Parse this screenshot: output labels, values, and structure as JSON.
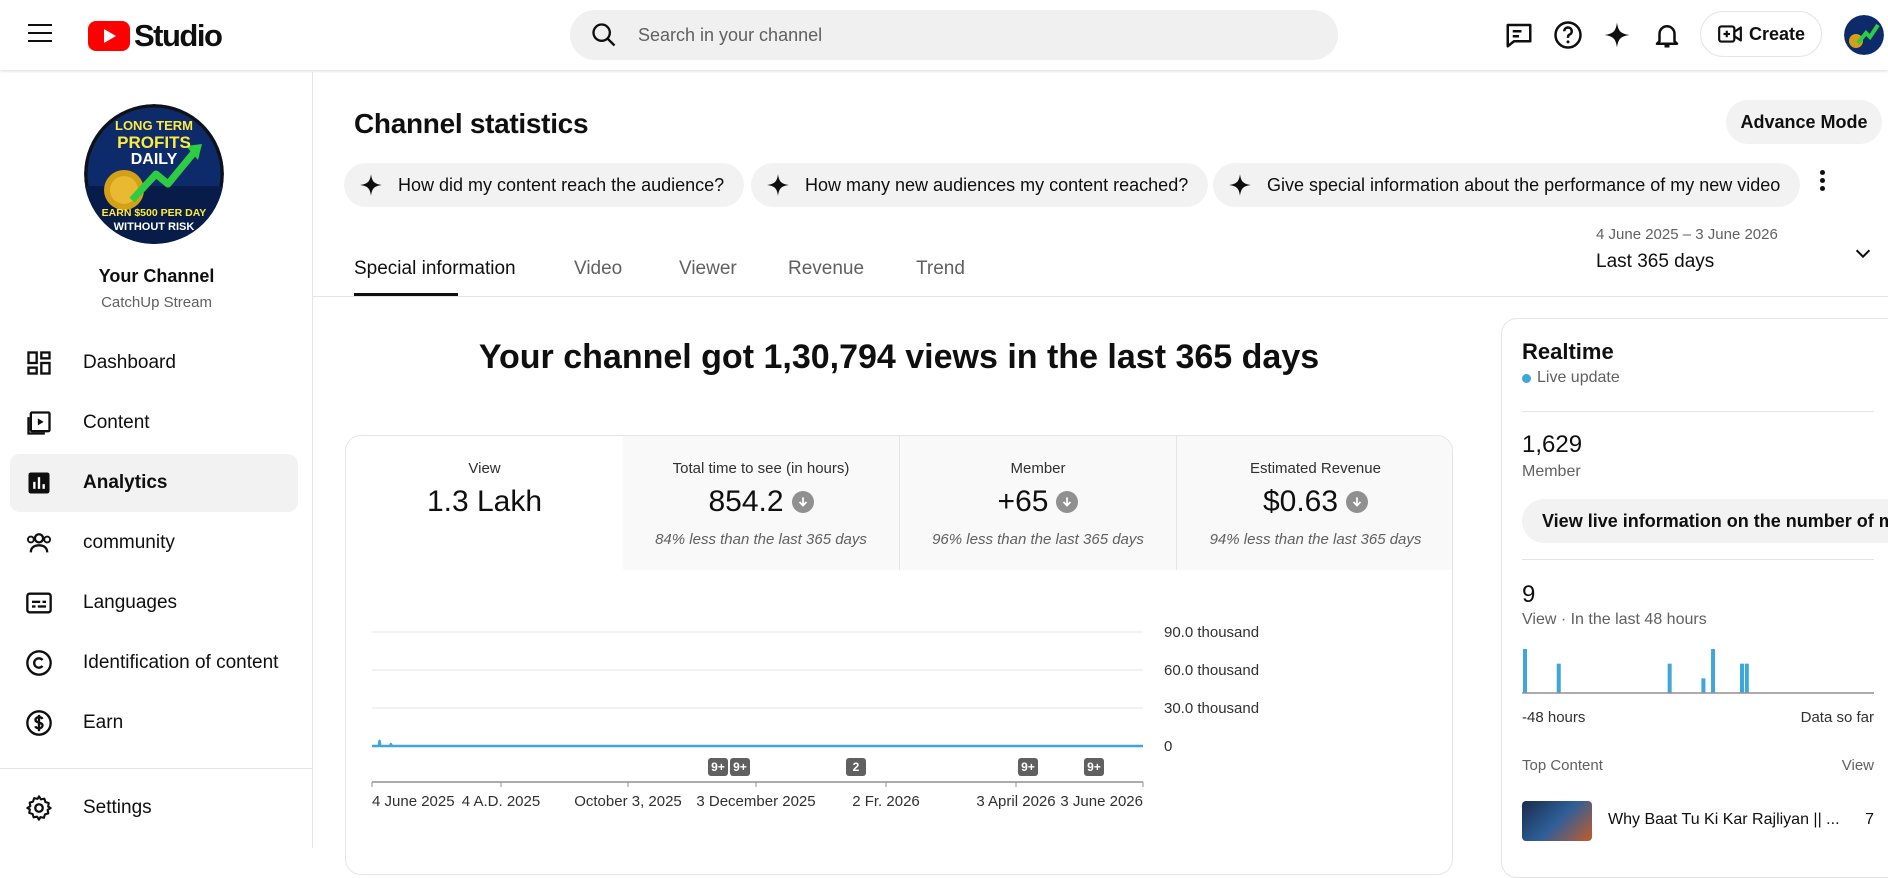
{
  "topbar": {
    "logo_text": "Studio",
    "search_placeholder": "Search in your channel",
    "create_label": "Create"
  },
  "sidebar": {
    "channel_name": "Your Channel",
    "channel_handle": "CatchUp Stream",
    "avatar_text": [
      "LONG TERM",
      "PROFITS",
      "DAILY",
      "EARN $500 PER DAY",
      "WITHOUT RISK"
    ],
    "items": [
      {
        "label": "Dashboard",
        "icon": "dashboard-icon"
      },
      {
        "label": "Content",
        "icon": "content-icon"
      },
      {
        "label": "Analytics",
        "icon": "analytics-icon",
        "active": true
      },
      {
        "label": "community",
        "icon": "community-icon"
      },
      {
        "label": "Languages",
        "icon": "languages-icon"
      },
      {
        "label": "Identification of content",
        "icon": "copyright-icon"
      },
      {
        "label": "Earn",
        "icon": "earn-icon"
      },
      {
        "label": "Settings",
        "icon": "gear-icon"
      }
    ]
  },
  "main": {
    "title": "Channel statistics",
    "advance_mode": "Advance Mode",
    "chips": [
      "How did my content reach the audience?",
      "How many new audiences my content reached?",
      "Give special information about the performance of my new video"
    ],
    "date_range": "4 June 2025 – 3 June 2026",
    "period": "Last 365 days",
    "tabs": [
      "Special information",
      "Video",
      "Viewer",
      "Revenue",
      "Trend"
    ],
    "headline": "Your channel got 1,30,794 views in the last 365 days",
    "metrics": [
      {
        "label": "View",
        "value": "1.3 Lakh",
        "change": ""
      },
      {
        "label": "Total time to see (in hours)",
        "value": "854.2",
        "change": "84% less than the last 365 days"
      },
      {
        "label": "Member",
        "value": "+65",
        "change": "96% less than the last 365 days"
      },
      {
        "label": "Estimated Revenue",
        "value": "$0.63",
        "change": "94% less than the last 365 days"
      }
    ]
  },
  "chart_data": {
    "type": "line",
    "x_ticks": [
      "4 June 2025",
      "4 A.D. 2025",
      "October 3, 2025",
      "3 December 2025",
      "2 Fr. 2026",
      "3 April 2026",
      "3 June 2026"
    ],
    "y_ticks": [
      "0",
      "30.0 thousand",
      "60.0 thousand",
      "90.0 thousand"
    ],
    "ylim": [
      0,
      90000
    ],
    "series": [
      {
        "values": [
          0,
          0,
          0,
          0,
          0,
          0,
          0,
          0,
          0,
          0,
          4000,
          0,
          0,
          0,
          0,
          0,
          0,
          0,
          0,
          0,
          0,
          0,
          0,
          0,
          0,
          1500,
          0,
          0,
          0,
          0,
          0,
          0,
          0,
          0,
          0,
          0,
          0,
          0,
          0,
          0,
          0,
          0,
          0,
          0,
          0,
          0,
          0,
          0,
          0,
          0,
          0,
          0,
          0,
          0,
          0,
          0,
          0,
          0,
          0,
          0,
          0,
          0,
          0,
          0,
          0,
          0,
          0,
          0,
          0,
          0,
          0,
          0,
          0,
          0,
          0,
          0,
          0,
          0,
          0,
          0,
          0,
          0,
          0,
          0,
          0,
          0,
          0,
          0,
          0,
          0,
          0,
          0,
          0,
          0,
          0,
          0,
          0,
          0,
          0,
          0,
          0,
          0,
          0,
          0,
          0,
          0,
          0,
          0,
          0,
          0,
          0,
          0,
          0,
          0,
          0,
          0,
          0,
          0,
          0,
          0,
          0,
          0,
          0,
          0,
          0,
          0,
          0,
          0,
          0,
          0,
          0,
          0,
          0,
          0,
          0,
          0,
          0,
          0,
          0,
          0,
          0,
          0,
          0,
          0,
          0,
          0,
          0,
          0,
          0,
          0,
          0,
          0,
          0,
          0,
          0,
          0,
          0,
          0,
          0,
          0,
          0,
          0,
          0,
          0,
          0,
          0,
          0,
          0,
          0,
          0,
          0,
          0,
          0,
          0,
          0,
          0,
          0,
          0,
          0,
          0,
          0,
          0,
          0,
          0,
          0,
          0,
          0,
          0,
          0,
          0,
          0,
          0,
          0,
          0,
          0,
          0,
          0,
          0,
          0,
          0,
          0,
          0,
          0,
          0,
          0,
          0,
          0,
          0,
          0,
          0,
          0,
          0,
          0,
          0,
          0,
          0,
          0,
          0,
          0,
          0,
          0,
          0,
          0,
          0,
          0,
          0,
          0,
          0,
          0,
          0,
          0,
          0,
          0,
          0,
          0,
          0,
          0,
          0,
          0,
          0,
          0,
          0,
          0,
          0,
          0,
          0,
          0,
          0,
          0,
          0,
          0,
          0,
          0,
          0,
          0,
          0,
          0,
          0,
          0,
          0,
          0,
          0,
          0,
          0,
          0,
          0,
          0,
          0,
          0,
          0,
          0,
          0,
          0,
          0,
          0,
          0,
          0,
          0,
          0,
          0,
          0,
          0,
          0,
          0,
          0,
          0,
          0,
          0,
          0,
          0,
          0,
          0,
          0,
          0,
          0,
          0,
          0,
          0,
          0,
          0,
          0,
          0,
          0,
          0,
          0,
          0,
          0,
          0,
          0,
          0,
          0,
          0,
          0,
          0,
          0,
          0,
          0,
          0,
          0,
          0,
          0,
          0,
          0,
          0,
          0,
          0,
          0,
          0,
          0,
          0,
          0,
          0,
          0,
          0,
          0,
          0,
          0,
          0,
          0,
          0,
          0,
          0,
          0,
          0,
          0,
          0,
          0,
          0,
          0,
          0,
          0,
          0,
          0,
          0,
          0,
          0,
          0,
          0,
          0,
          0,
          0,
          0,
          0,
          0,
          0,
          0,
          0,
          0,
          0,
          0,
          0,
          0,
          0,
          0,
          0,
          0,
          0,
          0,
          0,
          0,
          0,
          0,
          0,
          0,
          0,
          0,
          0,
          0,
          0,
          0,
          0,
          0,
          0,
          0,
          0,
          0,
          0,
          0,
          0,
          0,
          0,
          0,
          0,
          0,
          0,
          0,
          0,
          0,
          0,
          0,
          0,
          0,
          0,
          0,
          0,
          0,
          0,
          0,
          0,
          0,
          0,
          0,
          0,
          0,
          0,
          0,
          0,
          0,
          0,
          0,
          0,
          0,
          0,
          0,
          0,
          0,
          0,
          0,
          0,
          0,
          0,
          0,
          0,
          0,
          0,
          0,
          0,
          0,
          0,
          0,
          0,
          0,
          0,
          0,
          0,
          0,
          0,
          0,
          0,
          0,
          0,
          0,
          0,
          0,
          0,
          0,
          0,
          0,
          0,
          0,
          0,
          0,
          0,
          0,
          0,
          0,
          0,
          0,
          0,
          0,
          0,
          0,
          0,
          0,
          0,
          0,
          0,
          0,
          0,
          0,
          0,
          0,
          0,
          0,
          0,
          0,
          0,
          0,
          0,
          0,
          0,
          0,
          0,
          0,
          0,
          0,
          0,
          0,
          0,
          0,
          0,
          0,
          0,
          0,
          0,
          0,
          0,
          0,
          0,
          0,
          0,
          0,
          0,
          0,
          0,
          0,
          0,
          0,
          0,
          0,
          0,
          0,
          0,
          0,
          0,
          0,
          0,
          0,
          0,
          0,
          0,
          0,
          0,
          0,
          0,
          0,
          0,
          0,
          0,
          0,
          0,
          0,
          0,
          0,
          0,
          0,
          0,
          0,
          0,
          0,
          0,
          0,
          0,
          0,
          0,
          0,
          0,
          0,
          0,
          0,
          0,
          0,
          0,
          0,
          0,
          0,
          0,
          0,
          0,
          0,
          0,
          0,
          0,
          0,
          0,
          0,
          0,
          0,
          0,
          0,
          0,
          0,
          0,
          0,
          0,
          0,
          0,
          0,
          0,
          0,
          0,
          0,
          0,
          0,
          0,
          0,
          0,
          0,
          0,
          0,
          0,
          0,
          0,
          0,
          0,
          0,
          0,
          0,
          0,
          0,
          0,
          0,
          0,
          0,
          0,
          0,
          0,
          0,
          0,
          0,
          0,
          0,
          0,
          0,
          0,
          0,
          0,
          0,
          0,
          0,
          0,
          0,
          0,
          0,
          0,
          0,
          0,
          0,
          0,
          0,
          0,
          0,
          0,
          0,
          0,
          0,
          0,
          0,
          0,
          0,
          0,
          0,
          0,
          0,
          0,
          0,
          0,
          0,
          0,
          0,
          0,
          0,
          0,
          0,
          0,
          0,
          0,
          0,
          0,
          0,
          0,
          0,
          0,
          0,
          0,
          0,
          0,
          0,
          0,
          0,
          0,
          0,
          0,
          0,
          0,
          0,
          0,
          0,
          0,
          0,
          0,
          0,
          0,
          0,
          0,
          0,
          0,
          0,
          0,
          0,
          0,
          0,
          0,
          0,
          0,
          0,
          0,
          0,
          0,
          0,
          0,
          0,
          0,
          0,
          0,
          0,
          0,
          0,
          0,
          0,
          0,
          0,
          0,
          0,
          0,
          0,
          0,
          0,
          0,
          0,
          0,
          0,
          0,
          0,
          0,
          0,
          0,
          0,
          0,
          0,
          0,
          0,
          0,
          0,
          0,
          0,
          0,
          0,
          0,
          0,
          0,
          0,
          0,
          0,
          0,
          0,
          0,
          0,
          0,
          0,
          0,
          0,
          0,
          0,
          0,
          0,
          0,
          0,
          0,
          0,
          0,
          0,
          0,
          0,
          0,
          0,
          0,
          0,
          0,
          0,
          0,
          0,
          0,
          0,
          0,
          0,
          0,
          0,
          0,
          0,
          0,
          0,
          0,
          0,
          0,
          0,
          0,
          0,
          0,
          0,
          0,
          0,
          0,
          0,
          0,
          0,
          0,
          0,
          0,
          0,
          0,
          0,
          0,
          0,
          0,
          0,
          0,
          0,
          0,
          0,
          0,
          0,
          0,
          0,
          0,
          0,
          0,
          0,
          0,
          0,
          0,
          0,
          0,
          0,
          0,
          0,
          0,
          0,
          0,
          0,
          0,
          0,
          0,
          0,
          0,
          0,
          0,
          0,
          0,
          0,
          0,
          0,
          0,
          0,
          0,
          0,
          0,
          0,
          0,
          0,
          0,
          0,
          0,
          0,
          0,
          0,
          0,
          0,
          0,
          0,
          0,
          0,
          0,
          0,
          0,
          0,
          0,
          0,
          0,
          0,
          0,
          0,
          0,
          0,
          0,
          0,
          0,
          0,
          0,
          0,
          0,
          0,
          0,
          0,
          0,
          0,
          0,
          0,
          0,
          0,
          0,
          0,
          0,
          0,
          0,
          0,
          0,
          0,
          0,
          0,
          0,
          0,
          0,
          0,
          0,
          0,
          0,
          0,
          0,
          0,
          0,
          0,
          0,
          0,
          0,
          0,
          0,
          0,
          0,
          0,
          0,
          0,
          0,
          0,
          0,
          0,
          0,
          0,
          0,
          0,
          0,
          0,
          0,
          0,
          0,
          0,
          0,
          0,
          0,
          0,
          0,
          0,
          0,
          0,
          0,
          0,
          0,
          0,
          0,
          0,
          0,
          0,
          0,
          0,
          0,
          0,
          0,
          0,
          0,
          0,
          0,
          0,
          0,
          0,
          0,
          0,
          0,
          0,
          0,
          0,
          0,
          0,
          0,
          0,
          0,
          0,
          0,
          0,
          0,
          0,
          0,
          0,
          0,
          0,
          0,
          0,
          0,
          0,
          0,
          0,
          0,
          0,
          0,
          0,
          0,
          0,
          0,
          0,
          0
        ]
      }
    ],
    "markers": [
      "9+",
      "9+",
      "2",
      "9+",
      "9+"
    ],
    "grid": true,
    "color": "#3ea6d8"
  },
  "realtime": {
    "title": "Realtime",
    "live": "Live update",
    "members_count": "1,629",
    "members_label": "Member",
    "view_live_btn": "View live information on the number of members",
    "views_count": "9",
    "views_label": "View · In the last 48 hours",
    "axis_left": "-48 hours",
    "axis_right": "Data so far",
    "top_content": "Top Content",
    "top_content_col": "View",
    "top_video_title": "Why Baat Tu Ki Kar Rajliyan || ...",
    "top_video_views": "7",
    "spark_values": [
      3,
      0,
      0,
      0,
      0,
      0,
      0,
      2,
      0,
      0,
      0,
      0,
      0,
      0,
      0,
      0,
      0,
      0,
      0,
      0,
      0,
      0,
      0,
      0,
      0,
      0,
      0,
      0,
      0,
      0,
      2,
      0,
      0,
      0,
      0,
      0,
      0,
      1,
      0,
      3,
      0,
      0,
      0,
      0,
      0,
      2,
      2,
      0,
      0,
      0,
      0,
      0,
      0,
      0,
      0,
      0,
      0,
      0,
      0,
      0,
      0,
      0,
      0,
      0,
      0,
      0,
      0,
      0,
      0,
      0,
      0,
      0,
      0
    ],
    "spark_max": 3
  }
}
